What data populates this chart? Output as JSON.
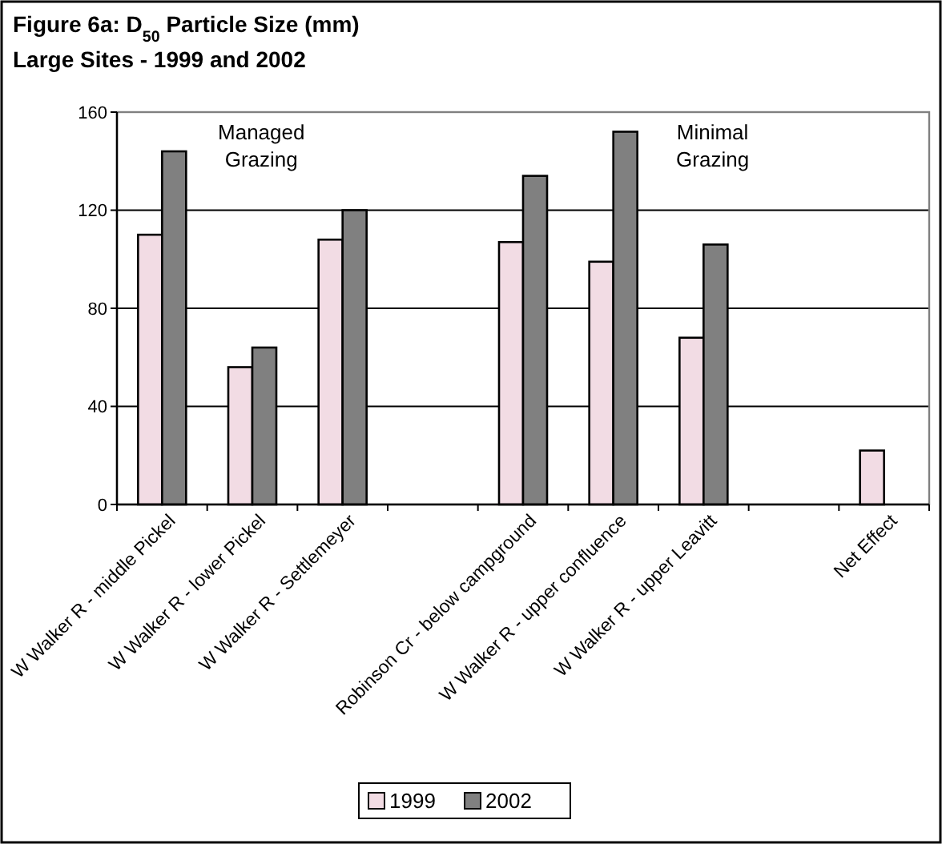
{
  "chart_data": {
    "type": "bar",
    "title": "Figure 6a: D$_{50}$ Particle Size (mm)",
    "subtitle": "Large Sites - 1999 and 2002",
    "categories": [
      "W Walker R - middle Pickel",
      "W Walker R - lower Pickel",
      "W Walker R - Settlemeyer",
      null,
      "Robinson Cr - below campground",
      "W Walker R - upper confluence",
      "W Walker R - upper Leavitt",
      null,
      "Net Effect"
    ],
    "series": [
      {
        "name": "1999",
        "color": "#f2dce4",
        "values": [
          110,
          56,
          108,
          null,
          107,
          99,
          68,
          null,
          22
        ]
      },
      {
        "name": "2002",
        "color": "#808080",
        "values": [
          144,
          64,
          120,
          null,
          134,
          152,
          106,
          null,
          null
        ]
      }
    ],
    "ylim": [
      0,
      160
    ],
    "yticks": [
      0,
      40,
      80,
      120,
      160
    ],
    "grid": "y",
    "legend": "bottom",
    "annotations": [
      "Managed Grazing",
      "Minimal Grazing"
    ]
  }
}
